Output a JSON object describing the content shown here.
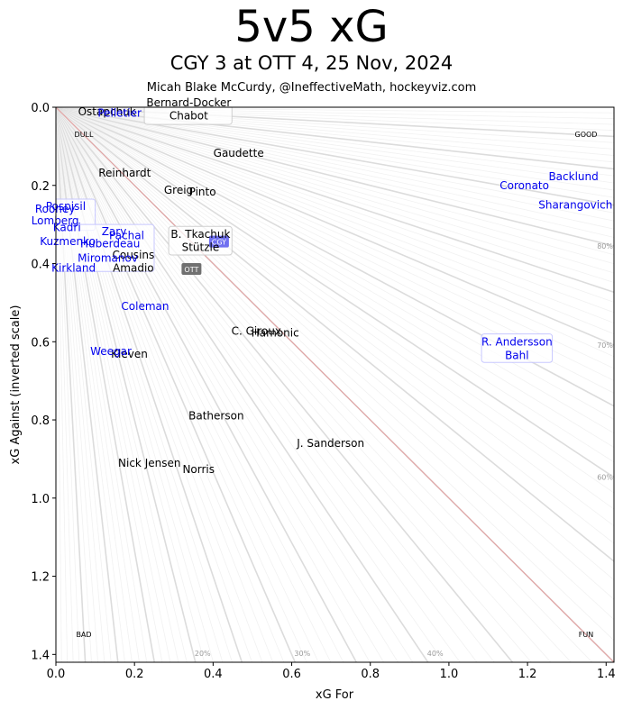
{
  "header": {
    "title": "5v5 xG",
    "subtitle": "CGY 3 at OTT 4, 25 Nov, 2024",
    "byline": "Micah Blake McCurdy, @IneffectiveMath, hockeyviz.com"
  },
  "colors": {
    "home": "#000000",
    "away": "#0000ee",
    "diagonal": "#e3a5a5",
    "ray": "#dddddd",
    "badge": "#707070"
  },
  "chart_data": {
    "type": "scatter",
    "xlabel": "xG For",
    "ylabel": "xG Against (inverted scale)",
    "xlim": [
      0,
      1.42
    ],
    "ylim": [
      1.42,
      0
    ],
    "y_inverted": true,
    "xticks": [
      0.0,
      0.2,
      0.4,
      0.6,
      0.8,
      1.0,
      1.2,
      1.4
    ],
    "yticks": [
      0.0,
      0.2,
      0.4,
      0.6,
      0.8,
      1.0,
      1.2,
      1.4
    ],
    "xtick_labels": [
      "0.0",
      "0.2",
      "0.4",
      "0.6",
      "0.8",
      "1.0",
      "1.2",
      "1.4"
    ],
    "ytick_labels": [
      "0.0",
      "0.2",
      "0.4",
      "0.6",
      "0.8",
      "1.0",
      "1.2",
      "1.4"
    ],
    "corner_labels": {
      "top_left": "DULL",
      "top_right": "GOOD",
      "bottom_left": "BAD",
      "bottom_right": "FUN"
    },
    "percent_labels": [
      {
        "text": "20%",
        "pct": 20
      },
      {
        "text": "30%",
        "pct": 30
      },
      {
        "text": "40%",
        "pct": 40
      },
      {
        "text": "60%",
        "pct": 60
      },
      {
        "text": "70%",
        "pct": 70
      },
      {
        "text": "80%",
        "pct": 80
      }
    ],
    "team_badges": [
      {
        "team": "OTT",
        "x": 0.345,
        "y": 0.415
      },
      {
        "team": "CGY",
        "x": 0.415,
        "y": 0.345
      }
    ],
    "series": [
      {
        "name": "OTT",
        "color": "#000000",
        "points": [
          {
            "label": "Ostapchuk",
            "x": 0.13,
            "y": 0.012
          },
          {
            "label": "Bernard-Docker",
            "x": 0.338,
            "y": -0.012
          },
          {
            "label": "Chabot",
            "x": 0.338,
            "y": 0.022
          },
          {
            "label": "Gaudette",
            "x": 0.465,
            "y": 0.117
          },
          {
            "label": "Reinhardt",
            "x": 0.175,
            "y": 0.168
          },
          {
            "label": "Greig",
            "x": 0.312,
            "y": 0.212
          },
          {
            "label": "Pinto",
            "x": 0.373,
            "y": 0.217
          },
          {
            "label": "B. Tkachuk",
            "x": 0.368,
            "y": 0.325
          },
          {
            "label": "Stützle",
            "x": 0.368,
            "y": 0.359
          },
          {
            "label": "Cousins",
            "x": 0.197,
            "y": 0.378
          },
          {
            "label": "Amadio",
            "x": 0.197,
            "y": 0.412
          },
          {
            "label": "C. Giroux",
            "x": 0.51,
            "y": 0.573
          },
          {
            "label": "Hamonic",
            "x": 0.558,
            "y": 0.578
          },
          {
            "label": "Kleven",
            "x": 0.187,
            "y": 0.632
          },
          {
            "label": "Batherson",
            "x": 0.408,
            "y": 0.79
          },
          {
            "label": "J. Sanderson",
            "x": 0.699,
            "y": 0.86
          },
          {
            "label": "Nick Jensen",
            "x": 0.238,
            "y": 0.91
          },
          {
            "label": "Norris",
            "x": 0.363,
            "y": 0.927
          }
        ]
      },
      {
        "name": "CGY",
        "color": "#0000ee",
        "points": [
          {
            "label": "Pelletier",
            "x": 0.162,
            "y": 0.015
          },
          {
            "label": "Coronato",
            "x": 1.192,
            "y": 0.2
          },
          {
            "label": "Backlund",
            "x": 1.317,
            "y": 0.178
          },
          {
            "label": "Sharangovich",
            "x": 1.322,
            "y": 0.25
          },
          {
            "label": "Pospisil",
            "x": 0.025,
            "y": 0.253
          },
          {
            "label": "Rooney",
            "x": -0.002,
            "y": 0.26
          },
          {
            "label": "Lomberg",
            "x": -0.002,
            "y": 0.29
          },
          {
            "label": "Kadri",
            "x": 0.028,
            "y": 0.308
          },
          {
            "label": "Zary",
            "x": 0.148,
            "y": 0.318
          },
          {
            "label": "Pachal",
            "x": 0.18,
            "y": 0.328
          },
          {
            "label": "Kuzmenko",
            "x": 0.03,
            "y": 0.344
          },
          {
            "label": "Huberdeau",
            "x": 0.138,
            "y": 0.349
          },
          {
            "label": "Miromanov",
            "x": 0.132,
            "y": 0.386
          },
          {
            "label": "Kirkland",
            "x": 0.045,
            "y": 0.411
          },
          {
            "label": "Coleman",
            "x": 0.227,
            "y": 0.51
          },
          {
            "label": "Weegar",
            "x": 0.14,
            "y": 0.625
          },
          {
            "label": "R. Andersson",
            "x": 1.173,
            "y": 0.6
          },
          {
            "label": "Bahl",
            "x": 1.173,
            "y": 0.635
          }
        ]
      }
    ],
    "boxes": [
      {
        "team": "OTT",
        "x0": 0.225,
        "x1": 0.448,
        "y0": -0.03,
        "y1": 0.044
      },
      {
        "team": "OTT",
        "x0": 0.287,
        "x1": 0.448,
        "y0": 0.305,
        "y1": 0.378
      },
      {
        "team": "CGY",
        "x0": -0.065,
        "x1": 0.1,
        "y0": 0.235,
        "y1": 0.315
      },
      {
        "team": "CGY",
        "x0": -0.05,
        "x1": 0.25,
        "y0": 0.3,
        "y1": 0.42
      },
      {
        "team": "CGY",
        "x0": 1.083,
        "x1": 1.263,
        "y0": 0.58,
        "y1": 0.653
      }
    ]
  }
}
